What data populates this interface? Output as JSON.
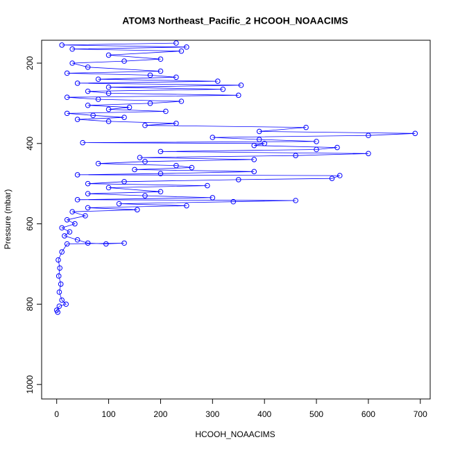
{
  "chart_data": {
    "type": "line",
    "title": "ATOM3 Northeast_Pacific_2 HCOOH_NOAACIMS",
    "x_label": "HCOOH_NOAACIMS",
    "y_label": "Pressure (mbar)",
    "xlim": [
      -29,
      719
    ],
    "ylim": [
      1036,
      143
    ],
    "xticks": [
      0,
      100,
      200,
      300,
      400,
      500,
      600,
      700
    ],
    "yticks": [
      200,
      400,
      600,
      800,
      1000
    ],
    "series": [
      {
        "color": "#0000ff",
        "x": [
          2,
          0,
          5,
          18,
          10,
          5,
          8,
          4,
          6,
          3,
          10,
          20,
          130,
          95,
          60,
          40,
          15,
          25,
          10,
          35,
          20,
          55,
          30,
          155,
          60,
          250,
          120,
          340,
          460,
          40,
          300,
          170,
          60,
          200,
          100,
          290,
          60,
          130,
          350,
          530,
          545,
          40,
          200,
          380,
          150,
          260,
          230,
          80,
          170,
          380,
          160,
          460,
          600,
          200,
          500,
          540,
          380,
          400,
          50,
          500,
          390,
          300,
          600,
          690,
          390,
          480,
          170,
          230,
          100,
          40,
          130,
          70,
          20,
          210,
          100,
          140,
          60,
          180,
          240,
          80,
          20,
          350,
          100,
          60,
          320,
          100,
          355,
          40,
          310,
          80,
          230,
          180,
          20,
          200,
          60,
          30,
          130,
          200,
          100,
          240,
          30,
          250,
          10,
          230
        ],
        "values": [
          820,
          815,
          805,
          800,
          790,
          770,
          750,
          730,
          710,
          690,
          670,
          650,
          648,
          650,
          648,
          640,
          630,
          620,
          610,
          600,
          590,
          580,
          570,
          565,
          560,
          555,
          550,
          545,
          542,
          540,
          535,
          530,
          525,
          520,
          510,
          505,
          500,
          495,
          490,
          487,
          480,
          478,
          475,
          470,
          465,
          460,
          455,
          450,
          445,
          440,
          435,
          430,
          425,
          420,
          415,
          410,
          405,
          400,
          398,
          395,
          390,
          385,
          380,
          375,
          370,
          360,
          355,
          350,
          345,
          340,
          335,
          330,
          325,
          320,
          315,
          310,
          305,
          300,
          295,
          290,
          285,
          280,
          275,
          270,
          265,
          260,
          255,
          250,
          245,
          240,
          235,
          230,
          225,
          220,
          210,
          200,
          195,
          190,
          180,
          170,
          165,
          160,
          155,
          150
        ]
      }
    ]
  }
}
